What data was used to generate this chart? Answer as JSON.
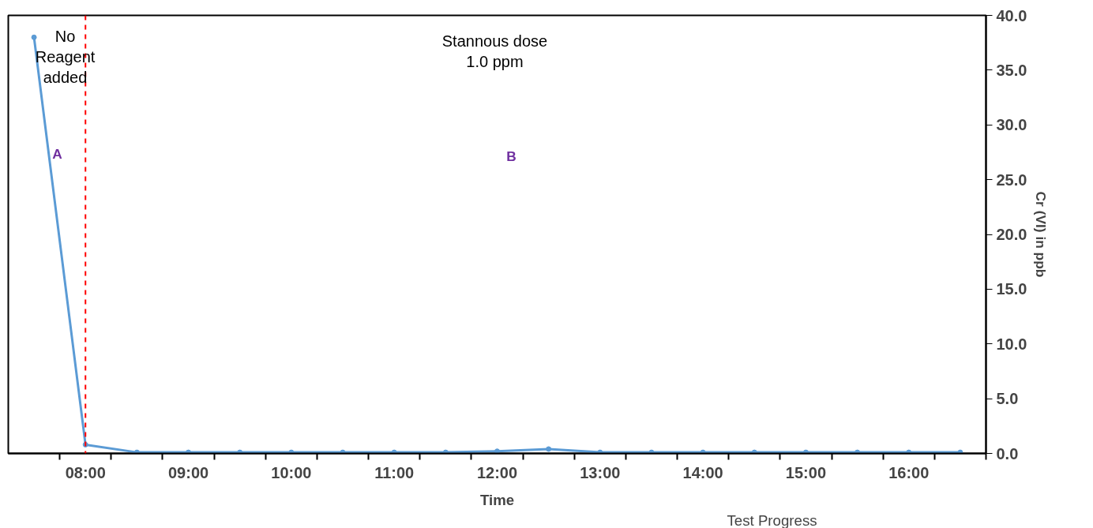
{
  "chart_data": {
    "type": "line",
    "xlabel": "Time",
    "ylabel": "Cr (VI) in ppb",
    "x": [
      7.5,
      8.0,
      8.5,
      9.0,
      9.5,
      10.0,
      10.5,
      11.0,
      11.5,
      12.0,
      12.5,
      13.0,
      13.5,
      14.0,
      14.5,
      15.0,
      15.5,
      16.0,
      16.5
    ],
    "series": [
      {
        "color": "#5b9bd5",
        "values": [
          38.0,
          0.8,
          0.1,
          0.1,
          0.1,
          0.1,
          0.1,
          0.1,
          0.1,
          0.2,
          0.4,
          0.1,
          0.1,
          0.1,
          0.1,
          0.1,
          0.1,
          0.1,
          0.1
        ]
      }
    ],
    "marker": "circle",
    "line_style": "solid",
    "grid": false,
    "xlim": [
      7.25,
      16.75
    ],
    "xticks": [
      {
        "value": 8,
        "label": "08:00"
      },
      {
        "value": 9,
        "label": "09:00"
      },
      {
        "value": 10,
        "label": "10:00"
      },
      {
        "value": 11,
        "label": "11:00"
      },
      {
        "value": 12,
        "label": "12:00"
      },
      {
        "value": 13,
        "label": "13:00"
      },
      {
        "value": 14,
        "label": "14:00"
      },
      {
        "value": 15,
        "label": "15:00"
      },
      {
        "value": 16,
        "label": "16:00"
      },
      {
        "value": 7.75,
        "label": null
      },
      {
        "value": 8.25,
        "label": null
      },
      {
        "value": 8.75,
        "label": null
      },
      {
        "value": 9.25,
        "label": null
      },
      {
        "value": 9.75,
        "label": null
      },
      {
        "value": 10.25,
        "label": null
      },
      {
        "value": 10.75,
        "label": null
      },
      {
        "value": 11.25,
        "label": null
      },
      {
        "value": 11.75,
        "label": null
      },
      {
        "value": 12.25,
        "label": null
      },
      {
        "value": 12.75,
        "label": null
      },
      {
        "value": 13.25,
        "label": null
      },
      {
        "value": 13.75,
        "label": null
      },
      {
        "value": 14.25,
        "label": null
      },
      {
        "value": 14.75,
        "label": null
      },
      {
        "value": 15.25,
        "label": null
      },
      {
        "value": 15.75,
        "label": null
      },
      {
        "value": 16.25,
        "label": null
      },
      {
        "value": 16.75,
        "label": null
      }
    ],
    "ylim": [
      0,
      40
    ],
    "yticks": [
      {
        "value": 0,
        "label": "0.0"
      },
      {
        "value": 5,
        "label": "5.0"
      },
      {
        "value": 10,
        "label": "10.0"
      },
      {
        "value": 15,
        "label": "15.0"
      },
      {
        "value": 20,
        "label": "20.0"
      },
      {
        "value": 25,
        "label": "25.0"
      },
      {
        "value": 30,
        "label": "30.0"
      },
      {
        "value": 35,
        "label": "35.0"
      },
      {
        "value": 40,
        "label": "40.0"
      }
    ],
    "ref_lines": [
      {
        "axis": "x",
        "value": 8.0,
        "color": "#ff0000",
        "line_style": "dashed"
      }
    ],
    "annotations": [
      "No\nReagent\nadded",
      "Stannous dose\n1.0 ppm",
      "A",
      "B",
      "Test Progress"
    ]
  }
}
